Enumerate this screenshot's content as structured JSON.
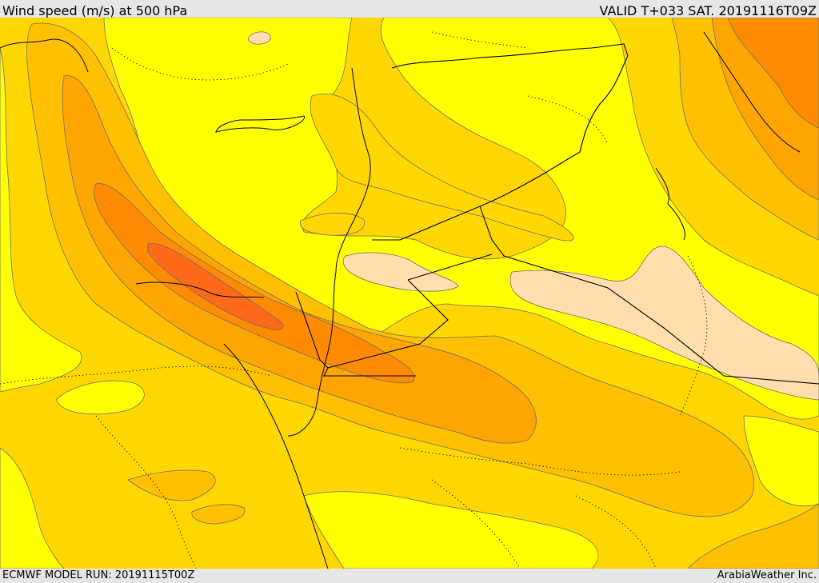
{
  "header": {
    "title": "Wind speed (m/s) at 500 hPa",
    "valid": "VALID T+033 SAT. 20191116T09Z"
  },
  "footer": {
    "model_run": "ECMWF MODEL RUN: 20191115T00Z",
    "credit": "ArabiaWeather Inc."
  },
  "map": {
    "variable": "wind speed at 500 hPa",
    "units": "m/s",
    "colors": {
      "pale_peach": "#ffdead",
      "yellow": "#ffff00",
      "gold": "#ffd700",
      "light_orange": "#ffc000",
      "orange": "#ffa500",
      "dark_orange": "#ff8c00",
      "red_orange": "#ff6a1a",
      "contour_line": "#6e6e6e",
      "coastline": "#000000",
      "border": "#000000"
    }
  }
}
